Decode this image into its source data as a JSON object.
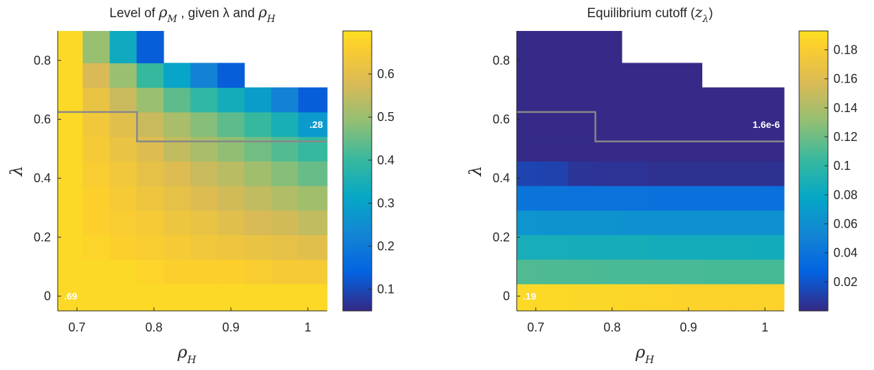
{
  "chart_data": [
    {
      "type": "heatmap",
      "title": "Level of ρM , given λ and ρH",
      "title_parts": {
        "pre": "Level of ",
        "sym": "ρ",
        "sub": "M",
        "mid": " , given λ and ",
        "sym2": "ρ",
        "sub2": "H"
      },
      "xlabel": {
        "sym": "ρ",
        "sub": "H"
      },
      "ylabel": "λ",
      "x_ticks": [
        "0.7",
        "0.8",
        "0.9",
        "1"
      ],
      "x_tick_values": [
        0.7,
        0.8,
        0.9,
        1.0
      ],
      "y_ticks": [
        "0",
        "0.2",
        "0.4",
        "0.6",
        "0.8"
      ],
      "y_tick_values": [
        0,
        0.2,
        0.4,
        0.6,
        0.8
      ],
      "xlim": [
        0.675,
        1.025
      ],
      "ylim": [
        -0.05,
        0.9
      ],
      "x_centers": [
        0.69,
        0.725,
        0.76,
        0.795,
        0.83,
        0.865,
        0.9,
        0.935,
        0.97,
        1.005
      ],
      "y_centers": [
        0.0,
        0.0833,
        0.1667,
        0.25,
        0.3333,
        0.4167,
        0.5,
        0.5833,
        0.6667,
        0.75,
        0.8333
      ],
      "values": [
        [
          0.69,
          0.69,
          0.69,
          0.69,
          0.69,
          0.69,
          0.69,
          0.69,
          0.69,
          0.69
        ],
        [
          0.69,
          0.69,
          0.69,
          0.68,
          0.67,
          0.67,
          0.67,
          0.66,
          0.65,
          0.65
        ],
        [
          0.69,
          0.68,
          0.67,
          0.66,
          0.65,
          0.64,
          0.63,
          0.62,
          0.61,
          0.6
        ],
        [
          0.69,
          0.67,
          0.66,
          0.65,
          0.63,
          0.62,
          0.6,
          0.58,
          0.57,
          0.55
        ],
        [
          0.69,
          0.67,
          0.65,
          0.63,
          0.61,
          0.59,
          0.57,
          0.55,
          0.53,
          0.51
        ],
        [
          0.69,
          0.66,
          0.64,
          0.61,
          0.59,
          0.56,
          0.54,
          0.51,
          0.48,
          0.45
        ],
        [
          0.69,
          0.65,
          0.62,
          0.59,
          0.55,
          0.52,
          0.49,
          0.46,
          0.43,
          0.4
        ],
        [
          0.69,
          0.64,
          0.6,
          0.56,
          0.52,
          0.48,
          0.44,
          0.4,
          0.35,
          0.28
        ],
        [
          0.69,
          0.62,
          0.56,
          0.5,
          0.44,
          0.39,
          0.34,
          0.29,
          0.22,
          0.13
        ],
        [
          0.69,
          0.58,
          0.5,
          0.4,
          0.31,
          0.22,
          0.13,
          null,
          null,
          null
        ],
        [
          0.69,
          0.5,
          0.33,
          0.13,
          null,
          null,
          null,
          null,
          null,
          null
        ]
      ],
      "clim": [
        0.05,
        0.7
      ],
      "colorbar_ticks": [
        "0.1",
        "0.2",
        "0.3",
        "0.4",
        "0.5",
        "0.6"
      ],
      "colorbar_tick_values": [
        0.1,
        0.2,
        0.3,
        0.4,
        0.5,
        0.6
      ],
      "boundary": [
        [
          0.675,
          0.625
        ],
        [
          0.778,
          0.625
        ],
        [
          0.778,
          0.525
        ],
        [
          1.025,
          0.525
        ]
      ],
      "annotations": [
        {
          "text": ".69",
          "x": 0.69,
          "y": 0.0
        },
        {
          "text": ".28",
          "x": 0.99,
          "y": 0.583
        }
      ],
      "grid": false
    },
    {
      "type": "heatmap",
      "title": "Equilibrium cutoff (zλ)",
      "title_parts": {
        "pre": "Equilibrium cutoff (",
        "sym": "z",
        "sub": "λ",
        "post": ")"
      },
      "xlabel": {
        "sym": "ρ",
        "sub": "H"
      },
      "ylabel": "λ",
      "x_ticks": [
        "0.7",
        "0.8",
        "0.9",
        "1"
      ],
      "x_tick_values": [
        0.7,
        0.8,
        0.9,
        1.0
      ],
      "y_ticks": [
        "0",
        "0.2",
        "0.4",
        "0.6",
        "0.8"
      ],
      "y_tick_values": [
        0,
        0.2,
        0.4,
        0.6,
        0.8
      ],
      "xlim": [
        0.675,
        1.025
      ],
      "ylim": [
        -0.05,
        0.9
      ],
      "x_centers": [
        0.69,
        0.725,
        0.76,
        0.795,
        0.83,
        0.865,
        0.9,
        0.935,
        0.97,
        1.005
      ],
      "y_centers": [
        0.0,
        0.0833,
        0.1667,
        0.25,
        0.3333,
        0.4167,
        0.5,
        0.5833,
        0.6667,
        0.75,
        0.8333
      ],
      "values": [
        [
          0.19,
          0.19,
          0.189,
          0.189,
          0.188,
          0.187,
          0.186,
          0.186,
          0.186,
          0.186
        ],
        [
          0.112,
          0.111,
          0.111,
          0.11,
          0.11,
          0.11,
          0.11,
          0.109,
          0.109,
          0.109
        ],
        [
          0.088,
          0.088,
          0.087,
          0.087,
          0.087,
          0.086,
          0.086,
          0.086,
          0.086,
          0.085
        ],
        [
          0.064,
          0.063,
          0.063,
          0.063,
          0.062,
          0.062,
          0.062,
          0.061,
          0.061,
          0.061
        ],
        [
          0.039,
          0.039,
          0.038,
          0.038,
          0.038,
          0.037,
          0.037,
          0.037,
          0.037,
          0.036
        ],
        [
          0.012,
          0.011,
          0.005,
          0.004,
          0.004,
          0.003,
          0.003,
          0.003,
          0.003,
          0.003
        ],
        [
          1.6e-06,
          1.6e-06,
          1.6e-06,
          1.6e-06,
          1.6e-06,
          1.6e-06,
          1.6e-06,
          1.6e-06,
          1.6e-06,
          1.6e-06
        ],
        [
          1.6e-06,
          1.6e-06,
          1.6e-06,
          1.6e-06,
          1.6e-06,
          1.6e-06,
          1.6e-06,
          1.6e-06,
          1.6e-06,
          1.6e-06
        ],
        [
          1.6e-06,
          1.6e-06,
          1.6e-06,
          1.6e-06,
          1.6e-06,
          1.6e-06,
          1.6e-06,
          1.6e-06,
          1.6e-06,
          1.6e-06
        ],
        [
          1.6e-06,
          1.6e-06,
          1.6e-06,
          1.6e-06,
          1.6e-06,
          1.6e-06,
          1.6e-06,
          null,
          null,
          null
        ],
        [
          1.6e-06,
          1.6e-06,
          1.6e-06,
          1.6e-06,
          null,
          null,
          null,
          null,
          null,
          null
        ]
      ],
      "clim": [
        0.0,
        0.193
      ],
      "colorbar_ticks": [
        "0.02",
        "0.04",
        "0.06",
        "0.08",
        "0.1",
        "0.12",
        "0.14",
        "0.16",
        "0.18"
      ],
      "colorbar_tick_values": [
        0.02,
        0.04,
        0.06,
        0.08,
        0.1,
        0.12,
        0.14,
        0.16,
        0.18
      ],
      "boundary": [
        [
          0.675,
          0.625
        ],
        [
          0.778,
          0.625
        ],
        [
          0.778,
          0.525
        ],
        [
          1.025,
          0.525
        ]
      ],
      "annotations": [
        {
          "text": ".19",
          "x": 0.69,
          "y": 0.0
        },
        {
          "text": "1.6e-6",
          "x": 0.99,
          "y": 0.583
        }
      ],
      "grid": false
    }
  ],
  "colormap": [
    "#352a87",
    "#0363e1",
    "#1485d4",
    "#06a7c6",
    "#38b99e",
    "#92bf73",
    "#d9ba56",
    "#fcce2e",
    "#f9fb0e"
  ],
  "colors": {
    "boundary_line": "#888888",
    "nan_cell": "#ffffff",
    "axis": "#262626",
    "annotation": "#ffffff"
  }
}
